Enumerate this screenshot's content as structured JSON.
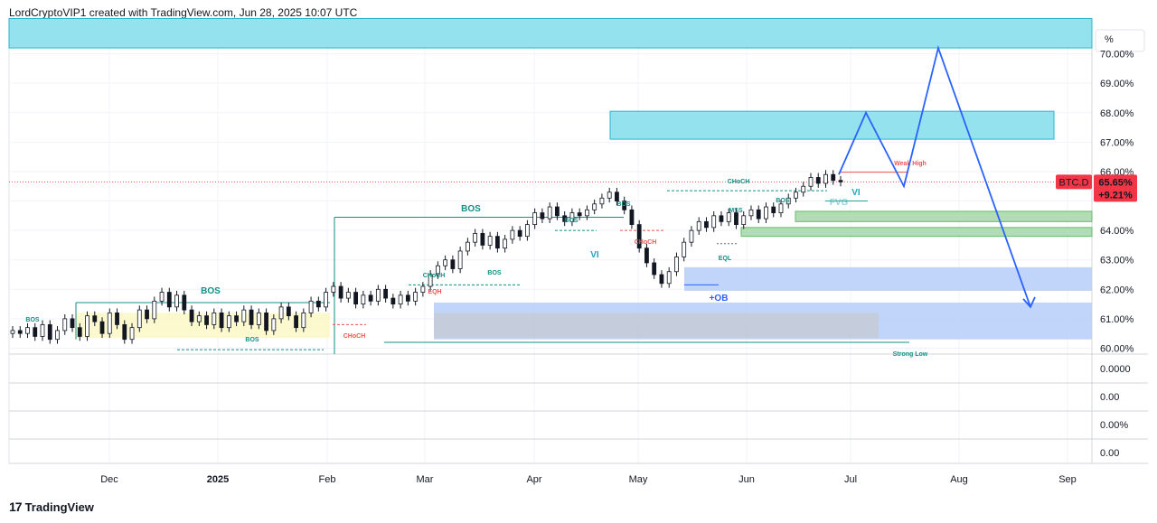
{
  "header": {
    "text": "LordCryptoVIP1 created with TradingView.com, Jun 28, 2025 10:07 UTC"
  },
  "branding": {
    "logo_mark": "17",
    "name": "TradingView"
  },
  "colors": {
    "up": "#26a69a",
    "down": "#ef5350",
    "candle": "#131722",
    "zone_cyan": "#8ee0ec",
    "zone_blue": "#b6ccf8",
    "zone_yellow": "#fbf8c6",
    "zone_green": "#a5d6a7",
    "projection": "#2962ff",
    "price_tag": "#f23645"
  },
  "chart_data": {
    "type": "candlestick",
    "symbol": "BTC.D",
    "price_unit_label": "%",
    "last_price_label": "65.65%",
    "change_label": "+9.21%",
    "y_ticks": [
      "70.00%",
      "69.00%",
      "68.00%",
      "67.00%",
      "66.00%",
      "65.00%",
      "64.00%",
      "63.00%",
      "62.00%",
      "61.00%",
      "60.00%"
    ],
    "y_values": [
      70,
      69,
      68,
      67,
      66,
      65,
      64,
      63,
      62,
      61,
      60
    ],
    "ylim": [
      59.8,
      71.0
    ],
    "x_labels": [
      "Dec",
      "2025",
      "Feb",
      "Mar",
      "Apr",
      "May",
      "Jun",
      "Jul",
      "Aug",
      "Sep"
    ],
    "lower_panes": [
      [
        "0.0000"
      ],
      [
        "0.00"
      ],
      [
        "0.00%"
      ],
      [
        "0.00"
      ]
    ],
    "candles": [
      60.6,
      60.5,
      60.7,
      60.4,
      60.8,
      60.3,
      60.6,
      61.0,
      60.7,
      60.4,
      61.1,
      60.9,
      60.5,
      61.2,
      60.8,
      60.3,
      60.7,
      61.3,
      61.0,
      61.6,
      61.9,
      61.4,
      61.8,
      61.3,
      60.9,
      61.1,
      60.8,
      61.2,
      60.7,
      61.1,
      60.9,
      61.3,
      60.8,
      61.2,
      60.6,
      61.0,
      61.4,
      61.1,
      60.7,
      61.2,
      61.6,
      61.4,
      61.9,
      62.1,
      61.7,
      61.9,
      61.5,
      61.8,
      61.6,
      62.0,
      61.7,
      61.5,
      61.8,
      61.6,
      61.9,
      62.1,
      62.5,
      62.8,
      63.0,
      62.7,
      63.3,
      63.6,
      63.9,
      63.5,
      63.8,
      63.4,
      63.7,
      64.0,
      63.8,
      64.2,
      64.6,
      64.4,
      64.8,
      64.5,
      64.3,
      64.6,
      64.5,
      64.7,
      64.9,
      65.1,
      65.3,
      65.0,
      64.7,
      64.2,
      63.4,
      62.9,
      62.5,
      62.2,
      62.6,
      63.1,
      63.6,
      64.0,
      64.3,
      64.1,
      64.5,
      64.3,
      64.6,
      64.2,
      64.5,
      64.7,
      64.4,
      64.8,
      64.6,
      64.9,
      65.1,
      65.3,
      65.5,
      65.8,
      65.6,
      65.9,
      65.7,
      65.65
    ],
    "annotations": [
      {
        "text": "BOS",
        "type": "structure"
      },
      {
        "text": "BOS",
        "type": "structure"
      },
      {
        "text": "BOS",
        "type": "structure"
      },
      {
        "text": "BOS",
        "type": "structure"
      },
      {
        "text": "BOS",
        "type": "structure"
      },
      {
        "text": "BOS",
        "type": "structure"
      },
      {
        "text": "BOS",
        "type": "structure"
      },
      {
        "text": "BOS",
        "type": "structure"
      },
      {
        "text": "CHoCH",
        "type": "structure"
      },
      {
        "text": "CHoCH",
        "type": "bearish"
      },
      {
        "text": "CHoCH",
        "type": "bearish"
      },
      {
        "text": "CHoCH",
        "type": "structure"
      },
      {
        "text": "EQH",
        "type": "bearish"
      },
      {
        "text": "EQL",
        "type": "structure"
      },
      {
        "text": "MSS",
        "type": "structure"
      },
      {
        "text": "VI",
        "type": "imbalance"
      },
      {
        "text": "VI",
        "type": "imbalance"
      },
      {
        "text": "+OB",
        "type": "order-block"
      },
      {
        "text": "Weak High",
        "type": "bearish"
      },
      {
        "text": "FVG",
        "type": "imbalance"
      },
      {
        "text": "Strong Low",
        "type": "structure"
      }
    ],
    "zones": [
      {
        "label": "top-cyan",
        "from": 70.2,
        "to": 71.2,
        "color": "zone_cyan"
      },
      {
        "label": "target-cyan",
        "from": 67.1,
        "to": 68.05,
        "color": "zone_cyan"
      },
      {
        "label": "blue-demand-upper",
        "from": 61.95,
        "to": 62.75,
        "color": "zone_blue"
      },
      {
        "label": "blue-demand-lower",
        "from": 60.3,
        "to": 61.55,
        "color": "zone_blue"
      },
      {
        "label": "yellow-zone",
        "from": 60.35,
        "to": 61.2,
        "color": "zone_yellow"
      },
      {
        "label": "green-zone-1",
        "from": 64.3,
        "to": 64.65,
        "color": "zone_green"
      },
      {
        "label": "green-zone-2",
        "from": 63.8,
        "to": 64.1,
        "color": "zone_green"
      }
    ],
    "projection_path": [
      65.9,
      68.0,
      65.5,
      70.2,
      61.4
    ]
  }
}
